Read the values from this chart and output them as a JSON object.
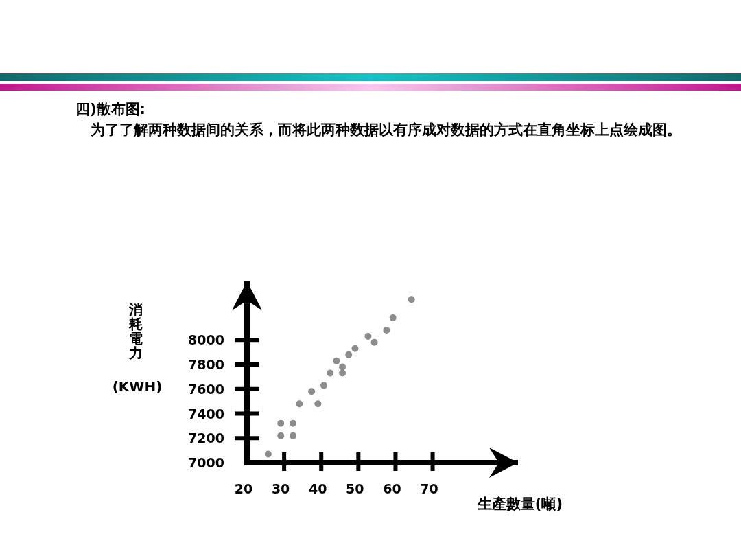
{
  "chart_data": {
    "type": "scatter",
    "title": "四)散布图:",
    "subtitle": "为了了解两种数据间的关系，而将此两种数据以有序成对数据的方式在直角坐标上点绘成图。",
    "xlabel": "生產數量(噸)",
    "ylabel": "消耗電力 (KWH)",
    "x": [
      25.7,
      29.1,
      29.1,
      32.4,
      32.4,
      34.1,
      37.4,
      39.1,
      40.7,
      42.4,
      44.1,
      45.7,
      45.7,
      47.4,
      49.1,
      52.6,
      54.3,
      57.6,
      59.3,
      64.3
    ],
    "values": [
      7070,
      7320,
      7220,
      7320,
      7220,
      7480,
      7580,
      7480,
      7630,
      7730,
      7830,
      7780,
      7730,
      7880,
      7930,
      8030,
      7980,
      8080,
      8180,
      8330
    ],
    "color": "#8c8c8c",
    "marker": "circle",
    "xlim": [
      20,
      93
    ],
    "ylim": [
      7000,
      8477
    ],
    "xticks": [
      20,
      30,
      40,
      50,
      60,
      70
    ],
    "yticks": [
      7000,
      7200,
      7400,
      7600,
      7800,
      8000
    ],
    "grid": false,
    "legend": false
  }
}
